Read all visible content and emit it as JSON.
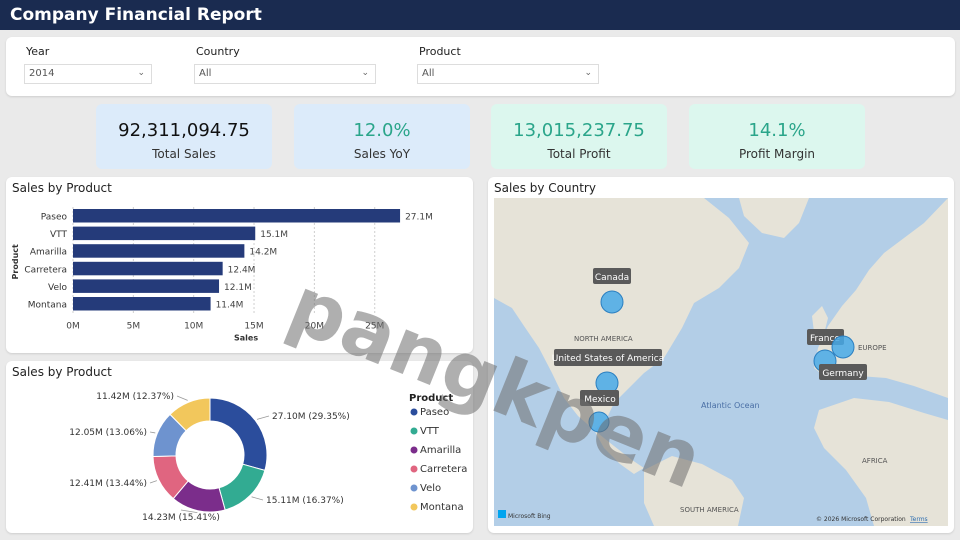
{
  "header": {
    "title": "Company Financial Report"
  },
  "filters": [
    {
      "label": "Year",
      "value": "2014"
    },
    {
      "label": "Country",
      "value": "All"
    },
    {
      "label": "Product",
      "value": "All"
    }
  ],
  "kpis": [
    {
      "value": "92,311,094.75",
      "label": "Total Sales"
    },
    {
      "value": "12.0%",
      "label": "Sales YoY"
    },
    {
      "value": "13,015,237.75",
      "label": "Total Profit"
    },
    {
      "value": "14.1%",
      "label": "Profit Margin"
    }
  ],
  "colors": {
    "header": "#1a2b50",
    "bar": "#253b7a",
    "kpi_blue": "#dcebfa",
    "kpi_green": "#dcf7ee",
    "teal_text": "#2aa58a",
    "map_water": "#b3cee7",
    "map_land": "#e6e3d8"
  },
  "bar_panel": {
    "title": "Sales by Product"
  },
  "donut_panel": {
    "title": "Sales by Product"
  },
  "map_panel": {
    "title": "Sales by Country",
    "labels": {
      "north_america": "NORTH AMERICA",
      "europe": "EUROPE",
      "africa": "AFRICA",
      "south_america": "SOUTH AMERICA",
      "atlantic": "Atlantic Ocean"
    },
    "markers": [
      {
        "country": "Canada",
        "value": 0.55
      },
      {
        "country": "United States of America",
        "value": 0.55
      },
      {
        "country": "Mexico",
        "value": 0.5
      },
      {
        "country": "France",
        "value": 0.55
      },
      {
        "country": "Germany",
        "value": 0.55
      }
    ],
    "footer": {
      "brand": "Microsoft Bing",
      "copyright": "© 2026 Microsoft Corporation",
      "terms": "Terms"
    }
  },
  "watermark": "pangkpen",
  "chart_data": [
    {
      "type": "bar",
      "title": "Sales by Product",
      "categories": [
        "Paseo",
        "VTT",
        "Amarilla",
        "Carretera",
        "Velo",
        "Montana"
      ],
      "values": [
        27.1,
        15.1,
        14.2,
        12.4,
        12.1,
        11.4
      ],
      "value_labels": [
        "27.1M",
        "15.1M",
        "14.2M",
        "12.4M",
        "12.1M",
        "11.4M"
      ],
      "xlabel": "Sales",
      "ylabel": "Product",
      "xlim": [
        0,
        29
      ],
      "ticks": [
        0,
        5,
        10,
        15,
        20,
        25
      ],
      "tick_labels": [
        "0M",
        "5M",
        "10M",
        "15M",
        "20M",
        "25M"
      ],
      "grid": true
    },
    {
      "type": "pie",
      "title": "Sales by Product",
      "legend_title": "Product",
      "legend_position": "right",
      "categories": [
        "Paseo",
        "VTT",
        "Amarilla",
        "Carretera",
        "Velo",
        "Montana"
      ],
      "values": [
        27.1,
        15.11,
        14.23,
        12.41,
        12.05,
        11.42
      ],
      "labels": [
        "27.10M (29.35%)",
        "15.11M (16.37%)",
        "14.23M (15.41%)",
        "12.41M (13.44%)",
        "12.05M (13.06%)",
        "11.42M (12.37%)"
      ],
      "colors": [
        "#2b4d9c",
        "#32ab92",
        "#7b2d8b",
        "#e06580",
        "#6e93cf",
        "#f2c75c"
      ]
    }
  ]
}
